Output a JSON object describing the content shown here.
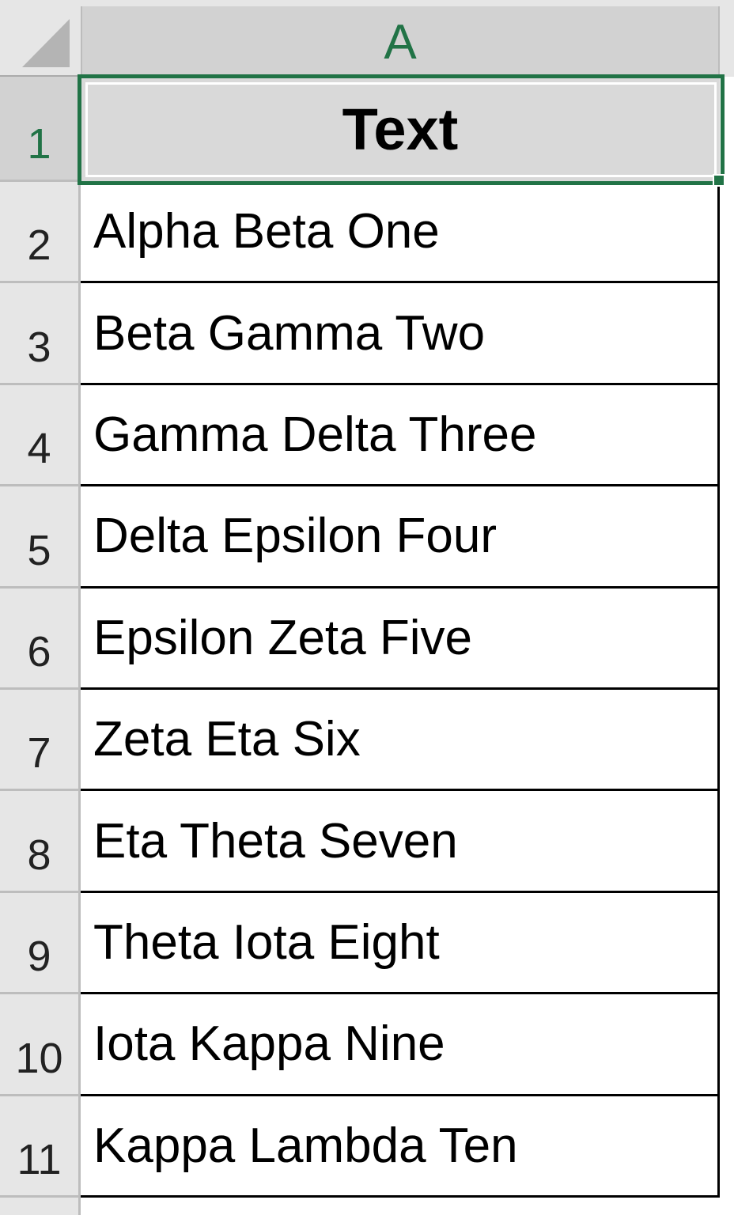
{
  "sheet": {
    "column_header": "A",
    "selected_cell": "A1",
    "accent_color": "#217346",
    "rows": [
      {
        "number": "1",
        "value": "Text"
      },
      {
        "number": "2",
        "value": "Alpha Beta One"
      },
      {
        "number": "3",
        "value": "Beta Gamma Two"
      },
      {
        "number": "4",
        "value": "Gamma Delta Three"
      },
      {
        "number": "5",
        "value": "Delta Epsilon Four"
      },
      {
        "number": "6",
        "value": "Epsilon Zeta Five"
      },
      {
        "number": "7",
        "value": "Zeta Eta Six"
      },
      {
        "number": "8",
        "value": "Eta Theta Seven"
      },
      {
        "number": "9",
        "value": "Theta Iota Eight"
      },
      {
        "number": "10",
        "value": "Iota Kappa Nine"
      },
      {
        "number": "11",
        "value": "Kappa Lambda Ten"
      }
    ]
  }
}
